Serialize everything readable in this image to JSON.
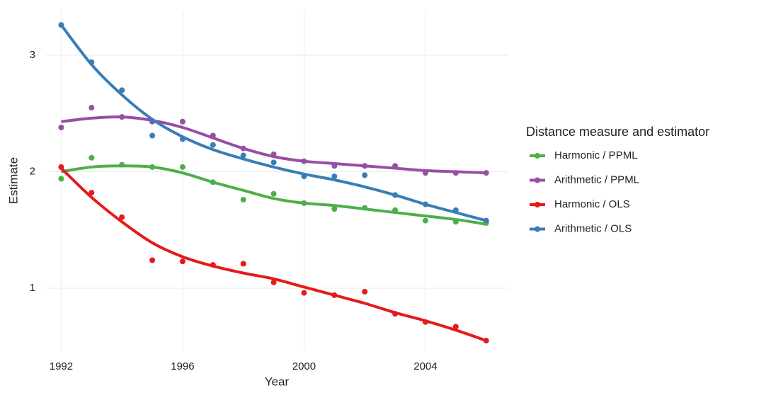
{
  "chart_data": {
    "type": "scatter_smooth",
    "x": [
      1992,
      1993,
      1994,
      1995,
      1996,
      1997,
      1998,
      1999,
      2000,
      2001,
      2002,
      2003,
      2004,
      2005,
      2006
    ],
    "x_label": "Year",
    "y_label": "Estimate",
    "xlim": [
      1991.5,
      2006.73
    ],
    "ylim": [
      0.465,
      3.383
    ],
    "xticks": [
      1992,
      1996,
      2000,
      2004
    ],
    "yticks": [
      1,
      2,
      3
    ],
    "grid": true,
    "legend_title": "Distance measure and estimator",
    "legend": "right",
    "series": [
      {
        "name": "Harmonic / PPML",
        "color": "#4daf4a",
        "values": [
          1.94,
          2.12,
          2.06,
          2.04,
          2.04,
          1.91,
          1.76,
          1.81,
          1.73,
          1.68,
          1.69,
          1.67,
          1.58,
          1.57,
          1.56
        ],
        "smooth": [
          2.0,
          2.04,
          2.05,
          2.04,
          1.99,
          1.91,
          1.84,
          1.77,
          1.73,
          1.71,
          1.68,
          1.65,
          1.62,
          1.59,
          1.55
        ]
      },
      {
        "name": "Arithmetic / PPML",
        "color": "#984ea3",
        "values": [
          2.38,
          2.55,
          2.47,
          2.43,
          2.43,
          2.31,
          2.2,
          2.15,
          2.09,
          2.05,
          2.05,
          2.05,
          1.99,
          1.99,
          1.99
        ],
        "smooth": [
          2.43,
          2.46,
          2.47,
          2.44,
          2.38,
          2.29,
          2.2,
          2.13,
          2.09,
          2.07,
          2.05,
          2.03,
          2.01,
          2.0,
          1.99
        ]
      },
      {
        "name": "Harmonic / OLS",
        "color": "#e41a1c",
        "values": [
          2.04,
          1.82,
          1.61,
          1.24,
          1.23,
          1.2,
          1.21,
          1.05,
          0.96,
          0.94,
          0.97,
          0.78,
          0.71,
          0.67,
          0.55
        ],
        "smooth": [
          2.03,
          1.78,
          1.57,
          1.39,
          1.27,
          1.19,
          1.13,
          1.08,
          1.01,
          0.94,
          0.87,
          0.79,
          0.72,
          0.64,
          0.55
        ]
      },
      {
        "name": "Arithmetic / OLS",
        "color": "#377eb8",
        "values": [
          3.26,
          2.94,
          2.7,
          2.31,
          2.28,
          2.23,
          2.14,
          2.08,
          1.96,
          1.96,
          1.97,
          1.8,
          1.72,
          1.67,
          1.58
        ],
        "smooth": [
          3.26,
          2.92,
          2.66,
          2.45,
          2.3,
          2.19,
          2.11,
          2.04,
          1.98,
          1.93,
          1.87,
          1.8,
          1.72,
          1.65,
          1.58
        ]
      }
    ]
  }
}
